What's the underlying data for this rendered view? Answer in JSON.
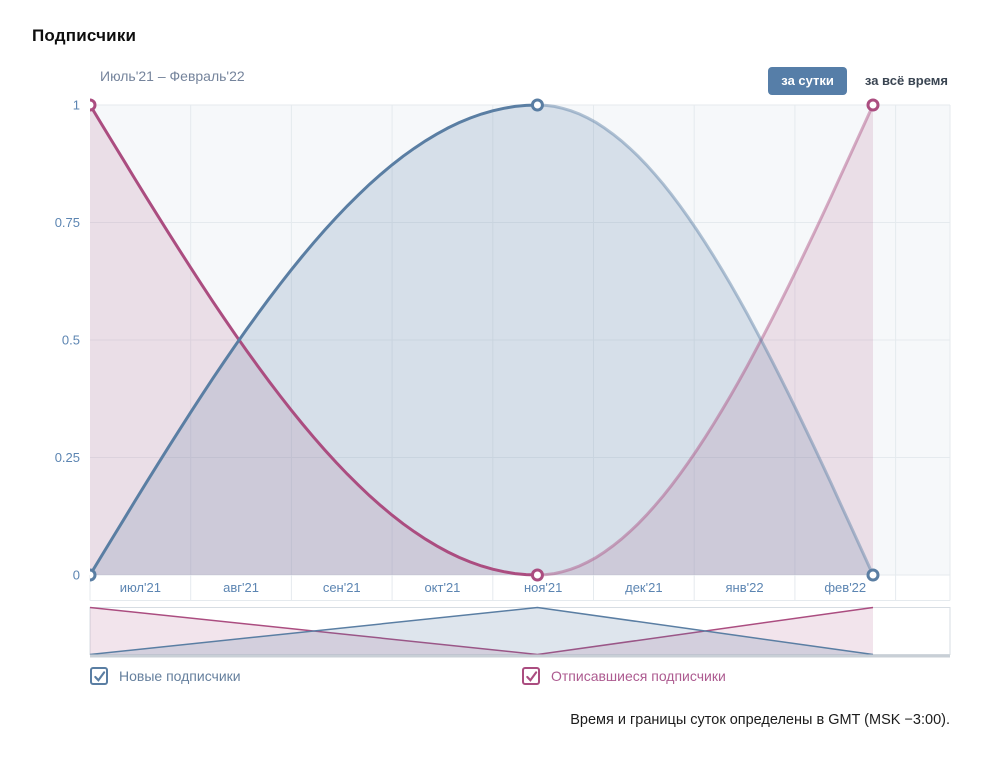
{
  "page": {
    "title": "Подписчики",
    "footer_note": "Время и границы суток определены в GMT (MSK −3:00)."
  },
  "toolbar": {
    "range_label": "Июль'21 – Февраль'22",
    "buttons": [
      {
        "label": "за сутки",
        "active": true
      },
      {
        "label": "за всё время",
        "active": false
      }
    ]
  },
  "legend": {
    "items": [
      {
        "label": "Новые подписчики",
        "color": "#5a7ea3",
        "checked": true
      },
      {
        "label": "Отписавшиеся подписчики",
        "color": "#ab4d80",
        "checked": true
      }
    ]
  },
  "colors": {
    "accent_button": "#567ea8",
    "axis_text": "#5c85b2",
    "grid": "#e5eaee",
    "plot_bg": "#f6f8fa",
    "series_blue": "#5a7ea3",
    "series_pink": "#ab4d80",
    "fill_blue": "rgba(90,126,163,0.20)",
    "fill_pink": "rgba(171,77,128,0.15)"
  },
  "chart_data": {
    "type": "area",
    "title": "Подписчики",
    "x_ticks": [
      "июл'21",
      "авг'21",
      "сен'21",
      "окт'21",
      "ноя'21",
      "дек'21",
      "янв'22",
      "фев'22"
    ],
    "y_ticks": [
      0,
      0.25,
      0.5,
      0.75,
      1
    ],
    "ylim": [
      0,
      1
    ],
    "grid": true,
    "curve": "smooth-sine",
    "legend_position": "bottom",
    "series": [
      {
        "name": "Новые подписчики",
        "color": "#5a7ea3",
        "points": [
          {
            "x": "июл'21",
            "y": 0
          },
          {
            "x": "ноя'21",
            "y": 1
          },
          {
            "x": "фев'22",
            "y": 0
          }
        ]
      },
      {
        "name": "Отписавшиеся подписчики",
        "color": "#ab4d80",
        "points": [
          {
            "x": "июл'21",
            "y": 1
          },
          {
            "x": "ноя'21",
            "y": 0
          },
          {
            "x": "фев'22",
            "y": 1
          }
        ]
      }
    ],
    "line_fade": {
      "from_point_index": 1,
      "opacity": 0.45
    },
    "minimap": {
      "shown": true,
      "curve": "linear",
      "same_series": true
    }
  }
}
